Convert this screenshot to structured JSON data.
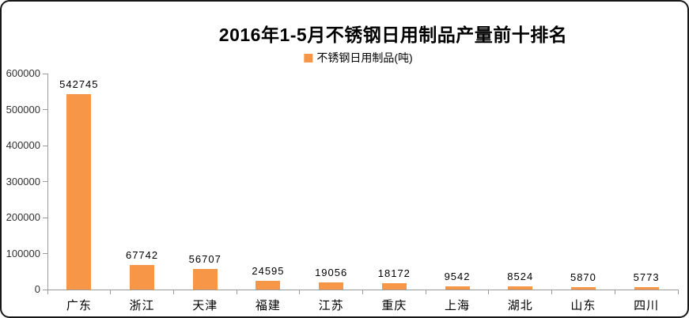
{
  "frame": {
    "background": "#FFFFFF",
    "border_color": "#161616"
  },
  "chart_data": {
    "type": "bar",
    "title": "2016年1-5月不锈钢日用制品产量前十排名",
    "legend": "不锈钢日用制品(吨)",
    "legend_position": "top-center",
    "categories": [
      "广东",
      "浙江",
      "天津",
      "福建",
      "江苏",
      "重庆",
      "上海",
      "湖北",
      "山东",
      "四川"
    ],
    "values": [
      542745,
      67742,
      56707,
      24595,
      19056,
      18172,
      9542,
      8524,
      5870,
      5773
    ],
    "xlabel": "",
    "ylabel": "",
    "ylim": [
      0,
      600000
    ],
    "y_ticks": [
      0,
      100000,
      200000,
      300000,
      400000,
      500000,
      600000
    ],
    "grid": false,
    "bar_color": "#F79646",
    "axis_color": "#9B9B9B",
    "text_color": "#000000"
  }
}
